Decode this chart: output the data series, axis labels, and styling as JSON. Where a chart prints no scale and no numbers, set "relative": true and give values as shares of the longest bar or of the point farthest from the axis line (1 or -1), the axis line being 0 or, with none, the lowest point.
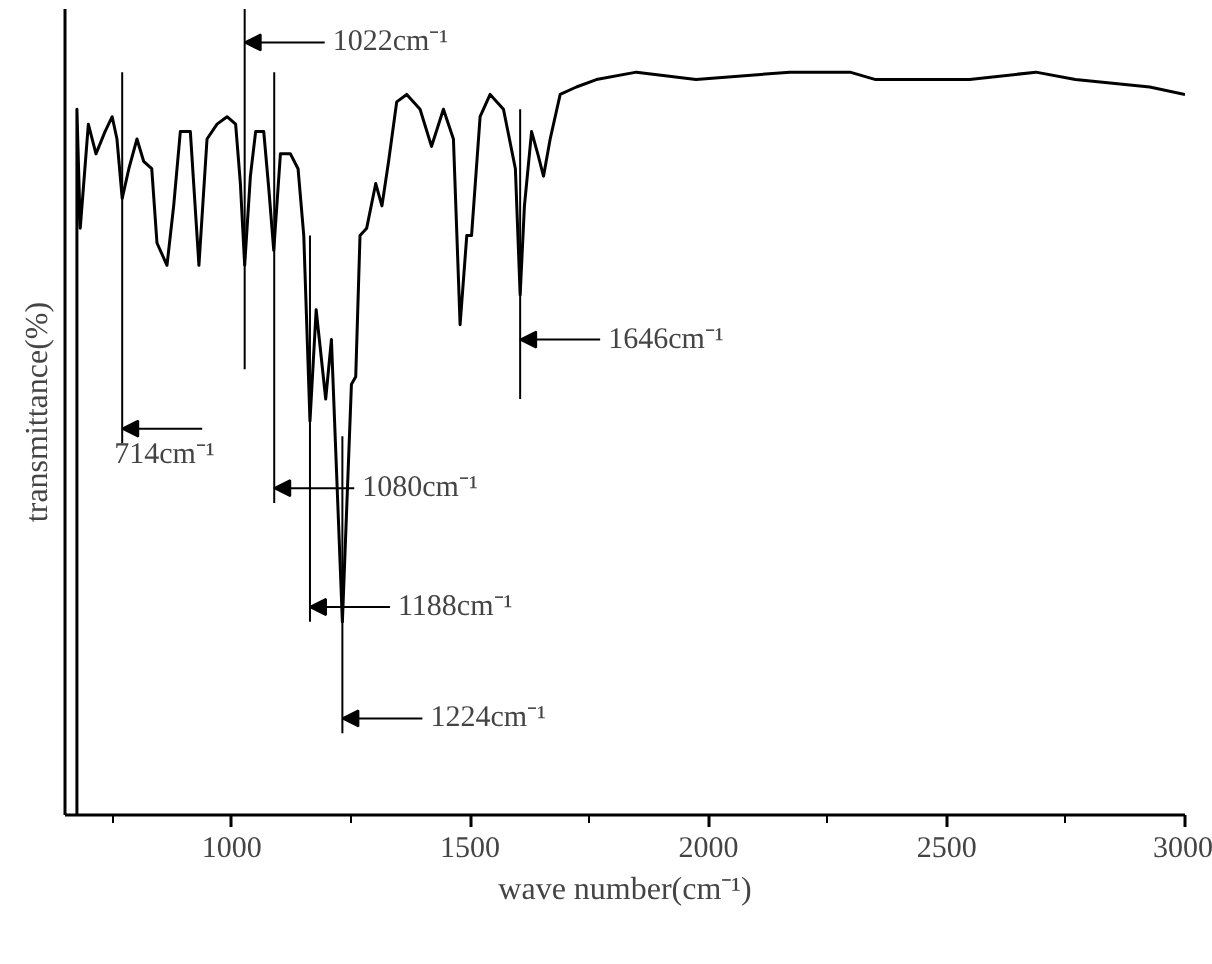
{
  "chart_data": {
    "type": "line",
    "xlabel": "wave number(cm⁻¹)",
    "ylabel": "transmittance(%)",
    "relative": true,
    "xlim": [
      650,
      3000
    ],
    "xticks": [
      {
        "value": 750,
        "label": null
      },
      1000,
      {
        "value": 1250,
        "label": null
      },
      1500,
      {
        "value": 1750,
        "label": null
      },
      2000,
      {
        "value": 2250,
        "label": null
      },
      2500,
      {
        "value": 2750,
        "label": null
      },
      3000
    ],
    "series": [
      {
        "color": "#000000",
        "x": [
          675,
          675,
          682,
          699,
          715,
          734,
          749,
          759,
          770,
          784,
          801,
          815,
          832,
          843,
          864,
          878,
          892,
          913,
          920,
          931,
          948,
          969,
          990,
          1008,
          1018,
          1027,
          1039,
          1050,
          1067,
          1078,
          1088,
          1102,
          1123,
          1139,
          1151,
          1164,
          1177,
          1197,
          1209,
          1232,
          1251,
          1260,
          1269,
          1283,
          1302,
          1315,
          1329,
          1346,
          1367,
          1395,
          1419,
          1444,
          1465,
          1479,
          1493,
          1503,
          1521,
          1542,
          1570,
          1595,
          1605,
          1614,
          1629,
          1642,
          1654,
          1668,
          1689,
          1723,
          1765,
          1849,
          1974,
          2171,
          2297,
          2351,
          2548,
          2687,
          2770,
          2926,
          3000
        ],
        "values": [
          0,
          0.95,
          0.79,
          0.93,
          0.89,
          0.92,
          0.94,
          0.91,
          0.83,
          0.87,
          0.91,
          0.88,
          0.87,
          0.77,
          0.74,
          0.82,
          0.92,
          0.92,
          0.85,
          0.74,
          0.91,
          0.93,
          0.94,
          0.93,
          0.85,
          0.74,
          0.86,
          0.92,
          0.92,
          0.84,
          0.76,
          0.89,
          0.89,
          0.87,
          0.78,
          0.53,
          0.68,
          0.56,
          0.64,
          0.26,
          0.58,
          0.59,
          0.78,
          0.79,
          0.85,
          0.82,
          0.88,
          0.96,
          0.97,
          0.95,
          0.9,
          0.95,
          0.91,
          0.66,
          0.78,
          0.78,
          0.94,
          0.97,
          0.95,
          0.87,
          0.7,
          0.82,
          0.92,
          0.89,
          0.86,
          0.91,
          0.97,
          0.98,
          0.99,
          1.0,
          0.99,
          1.0,
          1.0,
          0.99,
          0.99,
          1.0,
          0.99,
          0.98,
          0.97
        ]
      }
    ],
    "ref_lines": [
      {
        "axis": "x",
        "value": 770,
        "label": "714cm⁻¹"
      },
      {
        "axis": "x",
        "value": 1027,
        "label": "1022cm⁻¹"
      },
      {
        "axis": "x",
        "value": 1089,
        "label": "1080cm⁻¹"
      },
      {
        "axis": "x",
        "value": 1164,
        "label": "1188cm⁻¹"
      },
      {
        "axis": "x",
        "value": 1232,
        "label": "1224cm⁻¹"
      },
      {
        "axis": "x",
        "value": 1605,
        "label": "1646cm⁻¹"
      }
    ]
  }
}
